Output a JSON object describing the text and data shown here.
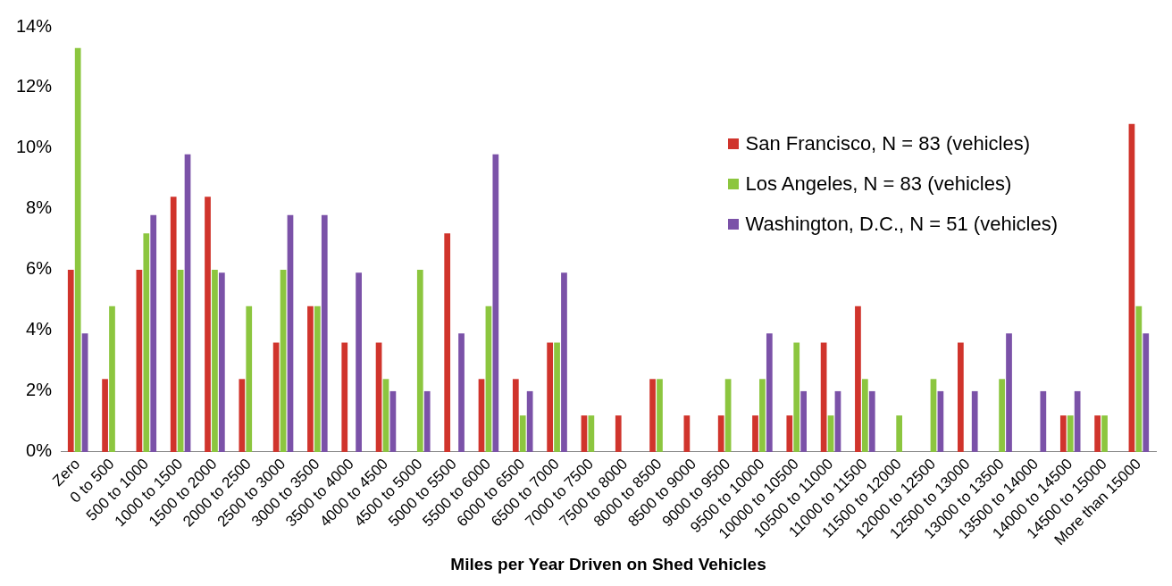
{
  "chart_data": {
    "type": "bar",
    "xlabel": "Miles per Year Driven on Shed Vehicles",
    "categories": [
      "Zero",
      "0 to 500",
      "500 to 1000",
      "1000 to 1500",
      "1500 to 2000",
      "2000 to 2500",
      "2500 to 3000",
      "3000 to 3500",
      "3500 to 4000",
      "4000 to 4500",
      "4500 to 5000",
      "5000 to 5500",
      "5500 to 6000",
      "6000 to 6500",
      "6500 to 7000",
      "7000 to 7500",
      "7500 to 8000",
      "8000 to 8500",
      "8500 to 9000",
      "9000 to 9500",
      "9500 to 10000",
      "10000 to 10500",
      "10500 to 11000",
      "11000 to 11500",
      "11500 to 12000",
      "12000 to 12500",
      "12500 to 13000",
      "13000 to 13500",
      "13500 to 14000",
      "14000 to 14500",
      "14500 to 15000",
      "More than 15000"
    ],
    "series": [
      {
        "name": "San Francisco, N = 83 (vehicles)",
        "color": "#d0342c",
        "values": [
          6.0,
          2.4,
          6.0,
          8.4,
          8.4,
          2.4,
          3.6,
          4.8,
          3.6,
          3.6,
          0,
          7.2,
          2.4,
          2.4,
          3.6,
          1.2,
          1.2,
          2.4,
          1.2,
          1.2,
          1.2,
          1.2,
          3.6,
          4.8,
          0,
          0,
          3.6,
          0,
          0,
          1.2,
          1.2,
          10.8
        ]
      },
      {
        "name": "Los Angeles, N = 83 (vehicles)",
        "color": "#8cc63f",
        "values": [
          13.3,
          4.8,
          7.2,
          6.0,
          6.0,
          4.8,
          6.0,
          4.8,
          0,
          2.4,
          6.0,
          0,
          4.8,
          1.2,
          3.6,
          1.2,
          0,
          2.4,
          0,
          2.4,
          2.4,
          3.6,
          1.2,
          2.4,
          1.2,
          2.4,
          0,
          2.4,
          0,
          1.2,
          1.2,
          4.8
        ]
      },
      {
        "name": "Washington, D.C., N = 51 (vehicles)",
        "color": "#7b52a8",
        "values": [
          3.9,
          0,
          7.8,
          9.8,
          5.9,
          0,
          7.8,
          7.8,
          5.9,
          2.0,
          2.0,
          3.9,
          9.8,
          2.0,
          5.9,
          0,
          0,
          0,
          0,
          0,
          3.9,
          2.0,
          2.0,
          2.0,
          0,
          2.0,
          2.0,
          3.9,
          2.0,
          2.0,
          0,
          3.9
        ]
      }
    ],
    "ylim": [
      0,
      14
    ],
    "yticks": [
      {
        "value": 0,
        "label": "0%"
      },
      {
        "value": 2,
        "label": "2%"
      },
      {
        "value": 4,
        "label": "4%"
      },
      {
        "value": 6,
        "label": "6%"
      },
      {
        "value": 8,
        "label": "8%"
      },
      {
        "value": 10,
        "label": "10%"
      },
      {
        "value": 12,
        "label": "12%"
      },
      {
        "value": 14,
        "label": "14%"
      }
    ],
    "grid": false,
    "legend": "top right"
  }
}
